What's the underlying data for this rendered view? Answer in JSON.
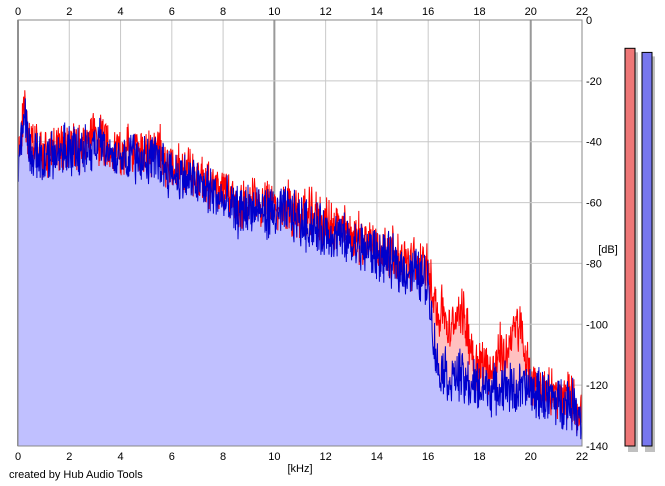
{
  "chart_data": {
    "type": "area",
    "title": "",
    "xlabel": "[kHz]",
    "ylabel": "[dB]",
    "xlim": [
      0,
      22
    ],
    "ylim": [
      -140,
      0
    ],
    "x_ticks": [
      "0",
      "2",
      "4",
      "6",
      "8",
      "10",
      "12",
      "14",
      "16",
      "18",
      "20",
      "22"
    ],
    "y_ticks": [
      "0",
      "-20",
      "-40",
      "-60",
      "-80",
      "-100",
      "-120",
      "-140"
    ],
    "grid": true,
    "credit": "created by Hub Audio Tools",
    "series": [
      {
        "color": "#ff0000",
        "fill": "#ffc0c0",
        "x": [
          0,
          0.25,
          0.5,
          1,
          1.5,
          2,
          2.5,
          3,
          3.5,
          4,
          4.5,
          5,
          5.5,
          6,
          6.5,
          7,
          7.5,
          8,
          8.5,
          9,
          9.5,
          10,
          10.5,
          11,
          11.5,
          12,
          12.5,
          13,
          13.5,
          14,
          14.5,
          15,
          15.5,
          16,
          16.2,
          16.4,
          16.6,
          16.8,
          17,
          17.2,
          17.4,
          17.6,
          17.8,
          18,
          18.2,
          18.4,
          18.6,
          18.8,
          19,
          19.2,
          19.4,
          19.6,
          19.8,
          20,
          20.2,
          20.4,
          20.6,
          20.8,
          21,
          21.2,
          21.4,
          21.6,
          21.8,
          22
        ],
        "values": [
          -45,
          -30,
          -42,
          -44,
          -43,
          -40,
          -42,
          -38,
          -41,
          -43,
          -42,
          -44,
          -43,
          -48,
          -49,
          -51,
          -53,
          -57,
          -60,
          -60,
          -61,
          -62,
          -61,
          -64,
          -64,
          -67,
          -68,
          -71,
          -72,
          -74,
          -76,
          -80,
          -80,
          -82,
          -88,
          -98,
          -94,
          -104,
          -100,
          -94,
          -98,
          -104,
          -112,
          -114,
          -112,
          -115,
          -115,
          -108,
          -112,
          -104,
          -102,
          -100,
          -112,
          -119,
          -119,
          -120,
          -121,
          -122,
          -124,
          -125,
          -124,
          -124,
          -128,
          -128
        ]
      },
      {
        "color": "#0000cc",
        "fill": "#c0c0ff",
        "x": [
          0,
          0.25,
          0.5,
          1,
          1.5,
          2,
          2.5,
          3,
          3.5,
          4,
          4.5,
          5,
          5.5,
          6,
          6.5,
          7,
          7.5,
          8,
          8.5,
          9,
          9.5,
          10,
          10.5,
          11,
          11.5,
          12,
          12.5,
          13,
          13.5,
          14,
          14.5,
          15,
          15.5,
          16,
          16.2,
          16.4,
          16.6,
          16.8,
          17,
          17.2,
          17.4,
          17.6,
          17.8,
          18,
          18.2,
          18.4,
          18.6,
          18.8,
          19,
          19.2,
          19.4,
          19.6,
          19.8,
          20,
          20.2,
          20.4,
          20.6,
          20.8,
          21,
          21.2,
          21.4,
          21.6,
          21.8,
          22
        ],
        "values": [
          -48,
          -30,
          -44,
          -46,
          -44,
          -42,
          -44,
          -40,
          -43,
          -45,
          -44,
          -46,
          -46,
          -50,
          -52,
          -54,
          -56,
          -60,
          -63,
          -62,
          -63,
          -64,
          -63,
          -66,
          -68,
          -70,
          -71,
          -74,
          -75,
          -77,
          -79,
          -82,
          -83,
          -86,
          -104,
          -116,
          -114,
          -118,
          -118,
          -116,
          -119,
          -120,
          -120,
          -121,
          -120,
          -121,
          -122,
          -121,
          -120,
          -121,
          -122,
          -121,
          -121,
          -122,
          -123,
          -123,
          -124,
          -124,
          -125,
          -126,
          -125,
          -126,
          -128,
          -130
        ]
      }
    ],
    "level_meters": [
      {
        "channel": "left",
        "color": "#ee7777",
        "level": 0.97
      },
      {
        "channel": "right",
        "color": "#7777ee",
        "level": 0.96
      }
    ]
  }
}
